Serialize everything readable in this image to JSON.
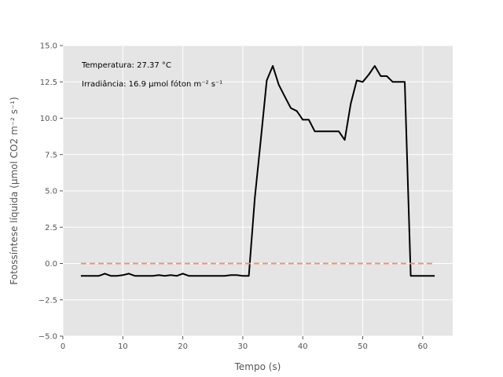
{
  "chart_data": {
    "type": "line",
    "xlabel": "Tempo (s)",
    "ylabel": "Fotossíntese líquida (μmol CO2 m⁻² s⁻¹)",
    "xlim": [
      0,
      65
    ],
    "ylim": [
      -5,
      15
    ],
    "xticks": [
      "0",
      "10",
      "20",
      "30",
      "40",
      "50",
      "60"
    ],
    "yticks": [
      "−5.0",
      "−2.5",
      "0.0",
      "2.5",
      "5.0",
      "7.5",
      "10.0",
      "12.5",
      "15.0"
    ],
    "grid": true,
    "annotations": [
      "Temperatura: 27.37 °C",
      "Irradiância: 16.9 μmol fóton m⁻² s⁻¹"
    ],
    "series": [
      {
        "color": "#000000",
        "style": "solid",
        "x": [
          3,
          4,
          5,
          6,
          7,
          8,
          9,
          10,
          11,
          12,
          13,
          14,
          15,
          16,
          17,
          18,
          19,
          20,
          21,
          22,
          23,
          24,
          25,
          26,
          27,
          28,
          29,
          30,
          31,
          32,
          33,
          34,
          35,
          36,
          37,
          38,
          39,
          40,
          41,
          42,
          43,
          44,
          45,
          46,
          47,
          48,
          49,
          50,
          51,
          52,
          53,
          54,
          55,
          56,
          57,
          58,
          59,
          60,
          61,
          62
        ],
        "values": [
          -0.85,
          -0.85,
          -0.85,
          -0.85,
          -0.7,
          -0.85,
          -0.85,
          -0.8,
          -0.7,
          -0.85,
          -0.85,
          -0.85,
          -0.85,
          -0.8,
          -0.85,
          -0.8,
          -0.85,
          -0.7,
          -0.85,
          -0.85,
          -0.85,
          -0.85,
          -0.85,
          -0.85,
          -0.85,
          -0.8,
          -0.8,
          -0.85,
          -0.85,
          4.5,
          8.5,
          12.6,
          13.6,
          12.3,
          11.5,
          10.7,
          10.5,
          9.9,
          9.9,
          9.1,
          9.1,
          9.1,
          9.1,
          9.1,
          8.5,
          11.0,
          12.6,
          12.5,
          13.0,
          13.6,
          12.9,
          12.9,
          12.5,
          12.5,
          12.5,
          -0.85,
          -0.85,
          -0.85,
          -0.85,
          -0.85
        ]
      },
      {
        "color": "#e8957a",
        "style": "dashed",
        "x": [
          3,
          62
        ],
        "values": [
          0,
          0
        ]
      }
    ]
  }
}
